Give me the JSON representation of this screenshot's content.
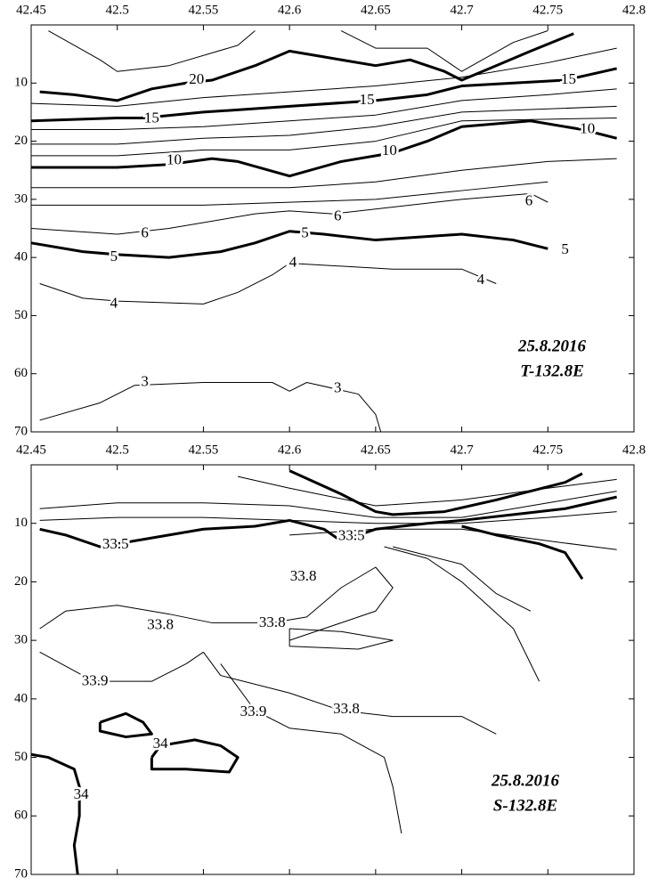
{
  "chart_data": [
    {
      "type": "contour",
      "xlim": [
        42.45,
        42.8
      ],
      "ylim": [
        0,
        70
      ],
      "y_inverted": true,
      "xticks": [
        42.45,
        42.5,
        42.55,
        42.6,
        42.65,
        42.7,
        42.75,
        42.8
      ],
      "yticks": [
        10,
        20,
        30,
        40,
        50,
        60,
        70
      ],
      "annotation": [
        "25.8.2016",
        "T-132.8E"
      ],
      "contours": [
        {
          "level": 20,
          "bold": true,
          "x": [
            42.455,
            42.475,
            42.5,
            42.52,
            42.54,
            42.555,
            42.58,
            42.6,
            42.62,
            42.65,
            42.67,
            42.69,
            42.7,
            42.72,
            42.74,
            42.765
          ],
          "y": [
            11.5,
            12,
            13,
            11,
            10,
            9.5,
            7,
            4.5,
            5.5,
            7,
            6,
            8,
            9.5,
            7,
            4.5,
            1.5
          ],
          "labels": [
            {
              "x": 42.546,
              "y": 9.5
            }
          ]
        },
        {
          "level": 15,
          "bold": true,
          "x": [
            42.45,
            42.5,
            42.515,
            42.55,
            42.6,
            42.65,
            42.68,
            42.7,
            42.73,
            42.76,
            42.79
          ],
          "y": [
            16.5,
            16,
            16,
            15,
            14,
            13,
            12,
            10.5,
            10,
            9.5,
            7.5
          ],
          "labels": [
            {
              "x": 42.52,
              "y": 16.2
            },
            {
              "x": 42.645,
              "y": 13
            },
            {
              "x": 42.762,
              "y": 9.5
            }
          ]
        },
        {
          "level": 10,
          "bold": true,
          "x": [
            42.45,
            42.5,
            42.53,
            42.555,
            42.57,
            42.6,
            42.63,
            42.66,
            42.68,
            42.7,
            42.74,
            42.77,
            42.79
          ],
          "y": [
            24.5,
            24.5,
            24,
            23,
            23.5,
            26,
            23.5,
            22,
            20,
            17.5,
            16.5,
            18,
            19.5
          ],
          "labels": [
            {
              "x": 42.533,
              "y": 23.4
            },
            {
              "x": 42.658,
              "y": 21.8
            },
            {
              "x": 42.773,
              "y": 18
            }
          ]
        },
        {
          "level": 6,
          "bold": false,
          "x": [
            42.45,
            42.5,
            42.53,
            42.58,
            42.6,
            42.625,
            42.7,
            42.74,
            42.75
          ],
          "y": [
            35,
            36,
            35,
            32.5,
            32,
            32.5,
            30,
            29,
            30.5
          ],
          "labels": [
            {
              "x": 42.516,
              "y": 35.9
            },
            {
              "x": 42.628,
              "y": 33
            },
            {
              "x": 42.739,
              "y": 30.4
            }
          ]
        },
        {
          "level": 5,
          "bold": true,
          "x": [
            42.45,
            42.48,
            42.5,
            42.53,
            42.56,
            42.58,
            42.6,
            42.62,
            42.65,
            42.7,
            42.73,
            42.75
          ],
          "y": [
            37.5,
            39,
            39.5,
            40,
            39,
            37.5,
            35.5,
            36,
            37,
            36,
            37,
            38.5
          ],
          "labels": [
            {
              "x": 42.498,
              "y": 40
            },
            {
              "x": 42.609,
              "y": 35.9
            },
            {
              "x": 42.76,
              "y": 38.8
            }
          ]
        },
        {
          "level": 4,
          "bold": false,
          "x": [
            42.455,
            42.48,
            42.5,
            42.55,
            42.57,
            42.59,
            42.6,
            42.63,
            42.66,
            42.7,
            42.72
          ],
          "y": [
            44.5,
            47,
            47.5,
            48,
            46,
            43,
            41,
            41.5,
            42,
            42,
            44.5
          ],
          "labels": [
            {
              "x": 42.498,
              "y": 48
            },
            {
              "x": 42.602,
              "y": 41
            },
            {
              "x": 42.711,
              "y": 44
            }
          ]
        },
        {
          "level": 3,
          "bold": false,
          "x": [
            42.455,
            42.49,
            42.51,
            42.55,
            42.59,
            42.6,
            42.61,
            42.64,
            42.65,
            42.653
          ],
          "y": [
            68,
            65,
            62,
            61.5,
            61.5,
            63,
            61.5,
            63.5,
            67,
            70
          ],
          "labels": [
            {
              "x": 42.516,
              "y": 61.5
            },
            {
              "x": 42.628,
              "y": 62.6
            }
          ]
        },
        {
          "bold": false,
          "x": [
            42.45,
            42.5,
            42.55,
            42.6,
            42.65,
            42.7,
            42.75,
            42.79
          ],
          "y": [
            13.5,
            14,
            12.5,
            11.5,
            10.5,
            9,
            6.5,
            4
          ]
        },
        {
          "bold": false,
          "x": [
            42.45,
            42.5,
            42.55,
            42.6,
            42.65,
            42.7,
            42.75,
            42.79
          ],
          "y": [
            18,
            18,
            17.5,
            16.5,
            15.5,
            13,
            12,
            11
          ]
        },
        {
          "bold": false,
          "x": [
            42.45,
            42.5,
            42.55,
            42.6,
            42.65,
            42.7,
            42.79
          ],
          "y": [
            20.5,
            20.5,
            19.5,
            19,
            17.5,
            15,
            14
          ]
        },
        {
          "bold": false,
          "x": [
            42.45,
            42.5,
            42.55,
            42.6,
            42.65,
            42.7,
            42.79
          ],
          "y": [
            22.5,
            22.5,
            21.5,
            21.5,
            20,
            16.5,
            16
          ]
        },
        {
          "bold": false,
          "x": [
            42.45,
            42.5,
            42.55,
            42.6,
            42.65,
            42.7,
            42.75,
            42.79
          ],
          "y": [
            28,
            28,
            28,
            28,
            27,
            25,
            23.5,
            23
          ]
        },
        {
          "bold": false,
          "x": [
            42.45,
            42.5,
            42.55,
            42.6,
            42.65,
            42.7,
            42.75
          ],
          "y": [
            31,
            31,
            31,
            30.5,
            30,
            28.5,
            27
          ]
        },
        {
          "bold": false,
          "x": [
            42.46,
            42.49,
            42.5,
            42.53,
            42.57,
            42.58
          ],
          "y": [
            1,
            6,
            8,
            7,
            3.5,
            1
          ]
        },
        {
          "bold": false,
          "x": [
            42.63,
            42.65,
            42.68,
            42.7,
            42.73,
            42.75
          ],
          "y": [
            1,
            4,
            4,
            8,
            3,
            1
          ]
        }
      ]
    },
    {
      "type": "contour",
      "xlim": [
        42.45,
        42.8
      ],
      "ylim": [
        0,
        70
      ],
      "y_inverted": true,
      "xticks": [
        42.45,
        42.5,
        42.55,
        42.6,
        42.65,
        42.7,
        42.75,
        42.8
      ],
      "yticks": [
        10,
        20,
        30,
        40,
        50,
        60,
        70
      ],
      "annotation": [
        "25.8.2016",
        "S-132.8E"
      ],
      "contours": [
        {
          "level": 33.5,
          "bold": true,
          "x": [
            42.455,
            42.47,
            42.49,
            42.52,
            42.55,
            42.58,
            42.6,
            42.62,
            42.63,
            42.65,
            42.68,
            42.7,
            42.73,
            42.76,
            42.79
          ],
          "y": [
            11,
            12,
            14,
            12.5,
            11,
            10.5,
            9.5,
            11,
            13,
            11,
            10,
            9.5,
            8.5,
            7.5,
            5.5
          ],
          "labels": [
            {
              "x": 42.499,
              "y": 13.7
            },
            {
              "x": 42.636,
              "y": 12.3
            }
          ]
        },
        {
          "bold": true,
          "x": [
            42.6,
            42.63,
            42.65,
            42.66,
            42.69,
            42.72,
            42.76,
            42.77
          ],
          "y": [
            1,
            5,
            8,
            8.5,
            8,
            6,
            3,
            1.5
          ]
        },
        {
          "bold": true,
          "x": [
            42.7,
            42.72,
            42.745,
            42.76,
            42.77
          ],
          "y": [
            10.5,
            12,
            13.5,
            15,
            19.5
          ]
        },
        {
          "level": 34,
          "bold": true,
          "x": [
            42.45,
            42.46,
            42.475,
            42.478,
            42.478,
            42.475,
            42.477
          ],
          "y": [
            49.5,
            50,
            52,
            55,
            60,
            65,
            70
          ],
          "labels": [
            {
              "x": 42.479,
              "y": 56.5
            }
          ]
        },
        {
          "bold": true,
          "x": [
            42.49,
            42.505,
            42.515,
            42.52,
            42.505,
            42.49,
            42.49
          ],
          "y": [
            44,
            42.5,
            44,
            46,
            46.5,
            45.5,
            44
          ]
        },
        {
          "level": 34,
          "bold": true,
          "x": [
            42.52,
            42.525,
            42.545,
            42.56,
            42.57,
            42.565,
            42.54,
            42.52,
            42.52
          ],
          "y": [
            50,
            48,
            47,
            48,
            50,
            52.5,
            52,
            52,
            50
          ],
          "labels": [
            {
              "x": 42.525,
              "y": 47.8
            }
          ]
        },
        {
          "level": 33.8,
          "bold": false,
          "x": [
            42.455,
            42.47,
            42.5,
            42.53,
            42.555,
            42.57,
            42.59,
            42.61,
            42.63,
            42.65,
            42.66,
            42.65,
            42.62,
            42.6
          ],
          "y": [
            28,
            25,
            24,
            25.5,
            27,
            27,
            27,
            26,
            21,
            17.5,
            21,
            25,
            28,
            30
          ],
          "labels": [
            {
              "x": 42.525,
              "y": 27.5
            },
            {
              "x": 42.59,
              "y": 27.1
            },
            {
              "x": 42.608,
              "y": 19.2
            }
          ]
        },
        {
          "level": 33.8,
          "bold": false,
          "x": [
            42.55,
            42.56,
            42.6,
            42.63,
            42.66,
            42.7,
            42.72
          ],
          "y": [
            32,
            36,
            39,
            42,
            43,
            43,
            46
          ],
          "labels": [
            {
              "x": 42.633,
              "y": 41.9
            }
          ]
        },
        {
          "level": 33.9,
          "bold": false,
          "x": [
            42.455,
            42.48,
            42.49,
            42.52,
            42.54,
            42.55
          ],
          "y": [
            32,
            36,
            37,
            37,
            34,
            32
          ],
          "labels": [
            {
              "x": 42.487,
              "y": 37.1
            }
          ]
        },
        {
          "level": 33.9,
          "bold": false,
          "x": [
            42.56,
            42.57,
            42.58,
            42.6,
            42.63,
            42.655,
            42.66,
            42.665
          ],
          "y": [
            34,
            38,
            42,
            45,
            46,
            50,
            55,
            63
          ],
          "labels": [
            {
              "x": 42.579,
              "y": 42.3
            }
          ]
        },
        {
          "bold": false,
          "x": [
            42.6,
            42.63,
            42.66,
            42.64,
            42.6,
            42.6
          ],
          "y": [
            28,
            28.5,
            30,
            31.5,
            31,
            28
          ]
        },
        {
          "bold": false,
          "x": [
            42.655,
            42.68,
            42.7,
            42.73,
            42.745
          ],
          "y": [
            14,
            16,
            20,
            28,
            37
          ]
        },
        {
          "bold": false,
          "x": [
            42.66,
            42.7,
            42.72,
            42.74
          ],
          "y": [
            14,
            17,
            22,
            25
          ]
        },
        {
          "bold": false,
          "x": [
            42.455,
            42.5,
            42.55,
            42.6,
            42.65,
            42.7,
            42.75,
            42.79
          ],
          "y": [
            7.5,
            6.5,
            6.5,
            7,
            9,
            9,
            6.5,
            4.5
          ]
        },
        {
          "bold": false,
          "x": [
            42.455,
            42.5,
            42.55,
            42.6,
            42.65,
            42.7,
            42.75,
            42.79
          ],
          "y": [
            9.5,
            9,
            9,
            9.5,
            10,
            10,
            9,
            8
          ]
        },
        {
          "bold": false,
          "x": [
            42.6,
            42.65,
            42.7,
            42.75,
            42.79
          ],
          "y": [
            12,
            11,
            11,
            13,
            14.5
          ]
        },
        {
          "bold": false,
          "x": [
            42.57,
            42.6,
            42.65,
            42.7,
            42.75,
            42.79
          ],
          "y": [
            2,
            4,
            7,
            6,
            4,
            2.5
          ]
        }
      ]
    }
  ]
}
